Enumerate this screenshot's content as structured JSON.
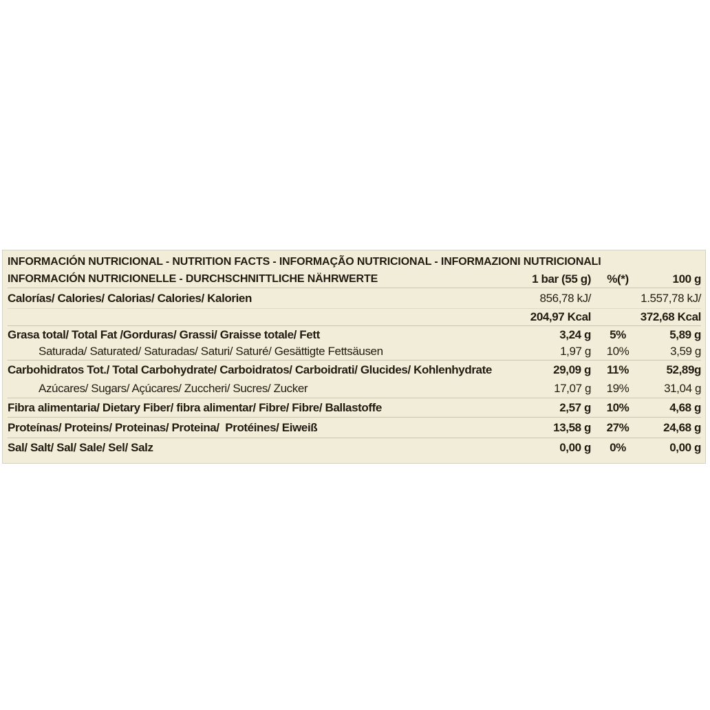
{
  "table": {
    "title_line1": "INFORMACIÓN NUTRICIONAL - NUTRITION FACTS - INFORMAÇÃO NUTRICIONAL - INFORMAZIONI NUTRICIONALI",
    "title_line2": "INFORMACIÓN NUTRICIONELLE - DURCHSCHNITTLICHE NÄHRWERTE",
    "columns": {
      "per_bar": "1 bar (55 g)",
      "percent": "%(*)",
      "per_100g": "100 g"
    },
    "rows": {
      "calories": {
        "label": "Calorías/ Calories/ Calorias/ Calories/ Kalorien",
        "bar_kj": "856,78 kJ/",
        "bar_kcal": "204,97 Kcal",
        "g100_kj": "1.557,78 kJ/",
        "g100_kcal": "372,68 Kcal"
      },
      "fat": {
        "label": "Grasa total/ Total Fat /Gorduras/ Grassi/ Graisse totale/ Fett",
        "bar": "3,24 g",
        "pct": "5%",
        "g100": "5,89 g"
      },
      "fat_saturated": {
        "label": "Saturada/ Saturated/ Saturadas/ Saturi/ Saturé/ Gesättigte Fettsäusen",
        "bar": "1,97 g",
        "pct": "10%",
        "g100": "3,59 g"
      },
      "carbohydrates": {
        "label": "Carbohidratos Tot./ Total Carbohydrate/ Carboidratos/ Carboidrati/ Glucides/ Kohlenhydrate",
        "bar": "29,09 g",
        "pct": "11%",
        "g100": "52,89g"
      },
      "sugars": {
        "label": "Azúcares/ Sugars/ Açúcares/ Zuccheri/ Sucres/ Zucker",
        "bar": "17,07 g",
        "pct": "19%",
        "g100": "31,04 g"
      },
      "fiber": {
        "label": "Fibra alimentaria/ Dietary Fiber/ fibra alimentar/ Fibre/ Fibre/ Ballastoffe",
        "bar": "2,57 g",
        "pct": "10%",
        "g100": "4,68 g"
      },
      "protein": {
        "label": "Proteínas/ Proteins/ Proteinas/ Proteina/  Protéines/ Eiweiß",
        "bar": "13,58 g",
        "pct": "27%",
        "g100": "24,68 g"
      },
      "salt": {
        "label": "Sal/ Salt/ Sal/ Sale/ Sel/ Salz",
        "bar": "0,00 g",
        "pct": "0%",
        "g100": "0,00 g"
      }
    },
    "colors": {
      "background": "#f1edd9",
      "row_border": "#c9c5b0",
      "faint_border": "#ddd9c6",
      "text": "#211c11"
    }
  }
}
